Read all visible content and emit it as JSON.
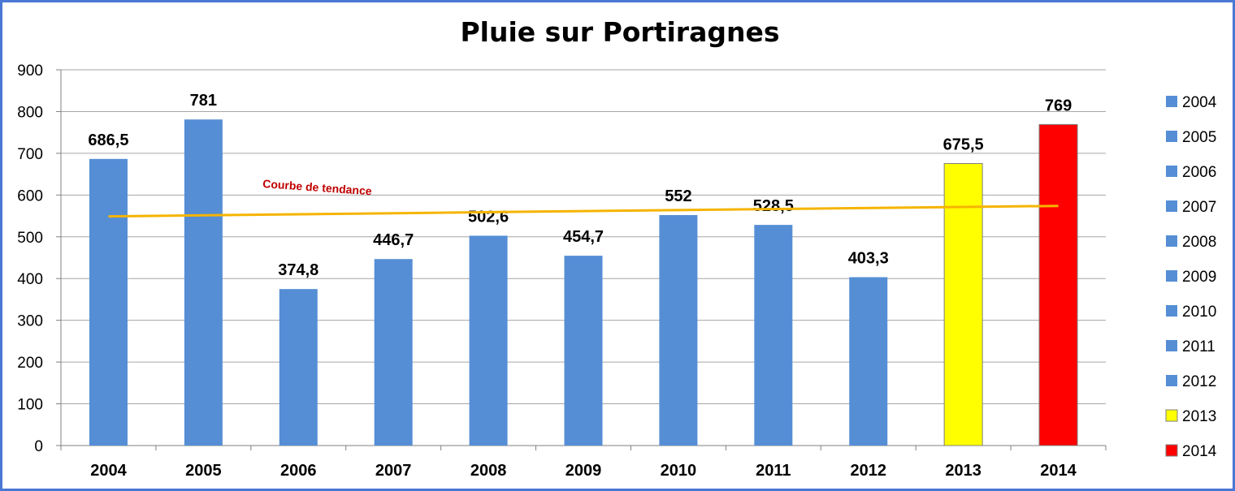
{
  "chart_data": {
    "type": "bar",
    "title": "Pluie sur Portiragnes",
    "categories": [
      "2004",
      "2005",
      "2006",
      "2007",
      "2008",
      "2009",
      "2010",
      "2011",
      "2012",
      "2013",
      "2014"
    ],
    "values": [
      686.5,
      781,
      374.8,
      446.7,
      502.6,
      454.7,
      552,
      528.5,
      403.3,
      675.5,
      769
    ],
    "value_labels": [
      "686,5",
      "781",
      "374,8",
      "446,7",
      "502,6",
      "454,7",
      "552",
      "528,5",
      "403,3",
      "675,5",
      "769"
    ],
    "colors": [
      "#558ed5",
      "#558ed5",
      "#558ed5",
      "#558ed5",
      "#558ed5",
      "#558ed5",
      "#558ed5",
      "#558ed5",
      "#558ed5",
      "#ffff00",
      "#ff0000"
    ],
    "ylim": [
      0,
      900
    ],
    "yticks": [
      0,
      100,
      200,
      300,
      400,
      500,
      600,
      700,
      800,
      900
    ],
    "grid": true,
    "legend": {
      "placement": "right",
      "entries": [
        "2004",
        "2005",
        "2006",
        "2007",
        "2008",
        "2009",
        "2010",
        "2011",
        "2012",
        "2013",
        "2014"
      ]
    },
    "trendline": {
      "label": "Courbe de tendance",
      "color": "#f5b400",
      "start_value": 549,
      "end_value": 574
    },
    "xlabel": "",
    "ylabel": ""
  }
}
